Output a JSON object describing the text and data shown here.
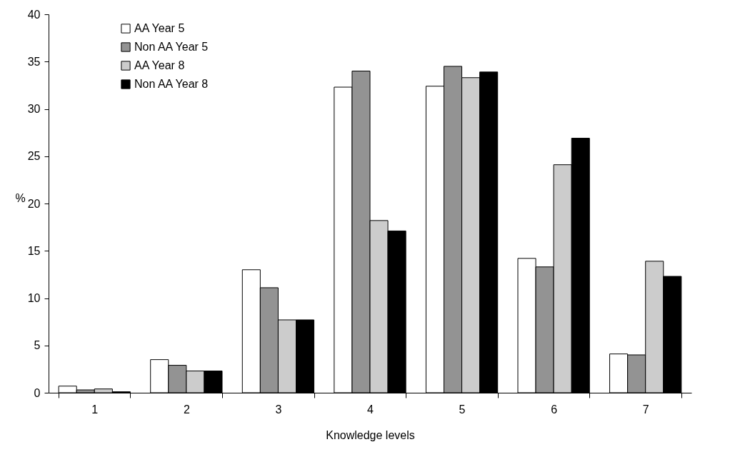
{
  "chart_data": {
    "type": "bar",
    "xlabel": "Knowledge levels",
    "ylabel": "%",
    "categories": [
      "1",
      "2",
      "3",
      "4",
      "5",
      "6",
      "7"
    ],
    "series": [
      {
        "name": "AA Year 5",
        "color": "#ffffff",
        "values": [
          0.7,
          3.5,
          13.0,
          32.3,
          32.4,
          14.2,
          4.1
        ]
      },
      {
        "name": "Non AA Year 5",
        "color": "#939393",
        "values": [
          0.3,
          2.9,
          11.1,
          34.0,
          34.5,
          13.3,
          4.0
        ]
      },
      {
        "name": "AA Year 8",
        "color": "#cccccc",
        "values": [
          0.4,
          2.3,
          7.7,
          18.2,
          33.3,
          24.1,
          13.9
        ]
      },
      {
        "name": "Non AA Year 8",
        "color": "#000000",
        "values": [
          0.1,
          2.3,
          7.7,
          17.1,
          33.9,
          26.9,
          12.3
        ]
      }
    ],
    "ylim": [
      0,
      40
    ],
    "yticks": [
      0,
      5,
      10,
      15,
      20,
      25,
      30,
      35,
      40
    ],
    "grid": false,
    "legend": "top left"
  }
}
